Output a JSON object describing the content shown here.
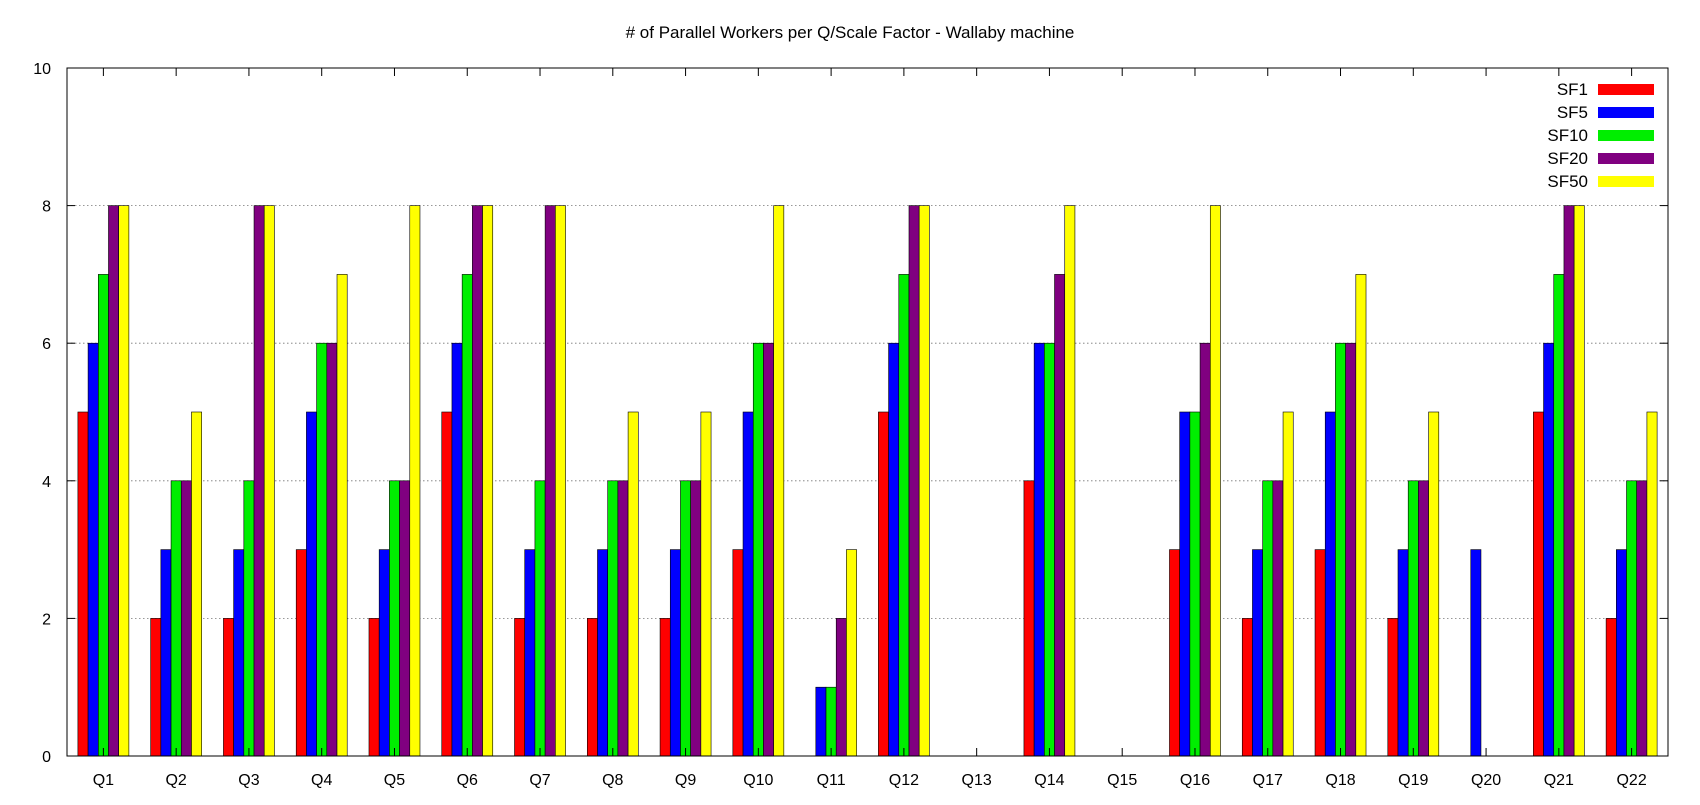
{
  "chart_data": {
    "type": "bar",
    "title": "# of Parallel Workers per Q/Scale Factor - Wallaby machine",
    "xlabel": "",
    "ylabel": "",
    "ylim": [
      0,
      10
    ],
    "yticks": [
      "0",
      "2",
      "4",
      "6",
      "8",
      "10"
    ],
    "grid": "horizontal dotted",
    "legend_position": "top-right",
    "categories": [
      "Q1",
      "Q2",
      "Q3",
      "Q4",
      "Q5",
      "Q6",
      "Q7",
      "Q8",
      "Q9",
      "Q10",
      "Q11",
      "Q12",
      "Q13",
      "Q14",
      "Q15",
      "Q16",
      "Q17",
      "Q18",
      "Q19",
      "Q20",
      "Q21",
      "Q22"
    ],
    "series": [
      {
        "name": "SF1",
        "color": "#ff0000",
        "values": [
          5,
          2,
          2,
          3,
          2,
          5,
          2,
          2,
          2,
          3,
          0,
          5,
          0,
          4,
          0,
          3,
          2,
          3,
          2,
          0,
          5,
          2
        ]
      },
      {
        "name": "SF5",
        "color": "#0000ff",
        "values": [
          6,
          3,
          3,
          5,
          3,
          6,
          3,
          3,
          3,
          5,
          1,
          6,
          0,
          6,
          0,
          5,
          3,
          5,
          3,
          3,
          6,
          3
        ]
      },
      {
        "name": "SF10",
        "color": "#00ee00",
        "values": [
          7,
          4,
          4,
          6,
          4,
          7,
          4,
          4,
          4,
          6,
          1,
          7,
          0,
          6,
          0,
          5,
          4,
          6,
          4,
          0,
          7,
          4
        ]
      },
      {
        "name": "SF20",
        "color": "#800080",
        "values": [
          8,
          4,
          8,
          6,
          4,
          8,
          8,
          4,
          4,
          6,
          2,
          8,
          0,
          7,
          0,
          6,
          4,
          6,
          4,
          0,
          8,
          4
        ]
      },
      {
        "name": "SF50",
        "color": "#ffff00",
        "values": [
          8,
          5,
          8,
          7,
          8,
          8,
          8,
          5,
          5,
          8,
          3,
          8,
          0,
          8,
          0,
          8,
          5,
          7,
          5,
          0,
          8,
          5
        ]
      }
    ]
  }
}
